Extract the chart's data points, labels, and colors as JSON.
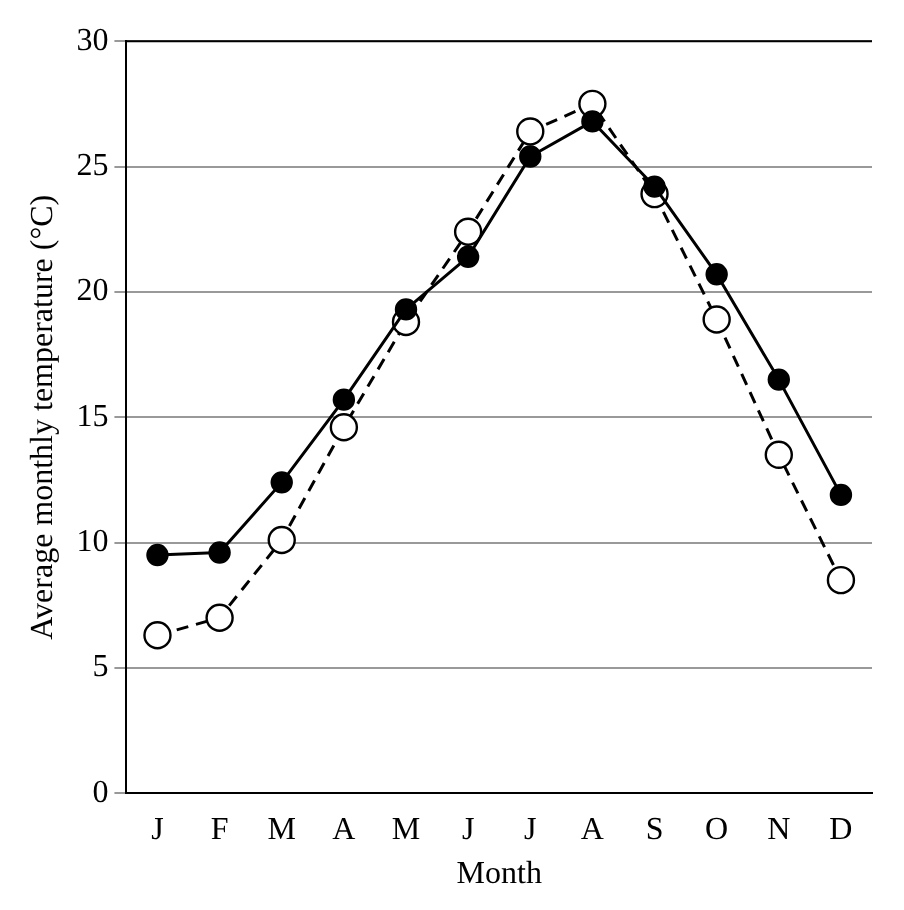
{
  "chart_data": {
    "type": "line",
    "xlabel": "Month",
    "ylabel": "Average monthly temperature (°C)",
    "categories": [
      "J",
      "F",
      "M",
      "A",
      "M",
      "J",
      "J",
      "A",
      "S",
      "O",
      "N",
      "D"
    ],
    "series": [
      {
        "color": "#000000",
        "line_style": "solid",
        "marker": "circle",
        "values": [
          9.5,
          9.6,
          12.4,
          15.7,
          19.3,
          21.4,
          25.4,
          26.8,
          24.2,
          20.7,
          16.5,
          11.9
        ]
      },
      {
        "color": "#000000",
        "line_style": "dashed",
        "marker": "circle",
        "values": [
          6.3,
          7.0,
          10.1,
          14.6,
          18.8,
          22.4,
          26.4,
          27.5,
          23.9,
          18.9,
          13.5,
          8.5
        ]
      }
    ],
    "ylim": [
      0,
      30
    ],
    "yticks": [
      0,
      5,
      10,
      15,
      20,
      25,
      30
    ],
    "grid": "y",
    "legend": false
  }
}
